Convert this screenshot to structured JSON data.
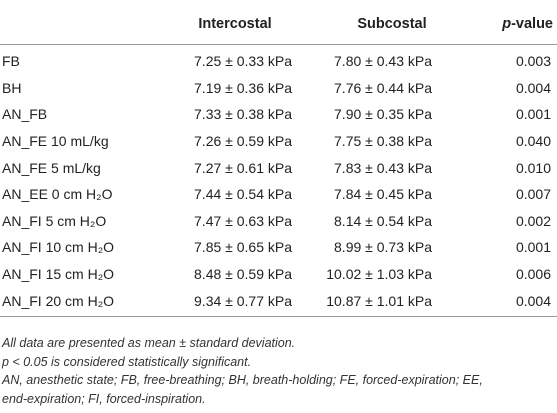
{
  "table": {
    "headers": {
      "label": "",
      "intercostal": "Intercostal",
      "subcostal": "Subcostal",
      "p_italic": "p",
      "p_rest": "-value"
    },
    "rows": [
      {
        "label": "FB",
        "intercostal": "7.25 ± 0.33 kPa",
        "subcostal": "7.80 ± 0.43 kPa",
        "p": "0.003"
      },
      {
        "label": "BH",
        "intercostal": "7.19 ± 0.36 kPa",
        "subcostal": "7.76 ± 0.44 kPa",
        "p": "0.004"
      },
      {
        "label": "AN_FB",
        "intercostal": "7.33 ± 0.38 kPa",
        "subcostal": "7.90 ± 0.35 kPa",
        "p": "0.001"
      },
      {
        "label": "AN_FE 10 mL/kg",
        "intercostal": "7.26 ± 0.59 kPa",
        "subcostal": "7.75 ± 0.38 kPa",
        "p": "0.040"
      },
      {
        "label": "AN_FE 5 mL/kg",
        "intercostal": "7.27 ± 0.61 kPa",
        "subcostal": "7.83 ± 0.43 kPa",
        "p": "0.010"
      },
      {
        "label": "AN_EE 0 cm H₂O",
        "intercostal": "7.44 ± 0.54 kPa",
        "subcostal": "7.84 ± 0.45 kPa",
        "p": "0.007"
      },
      {
        "label": "AN_FI 5 cm H₂O",
        "intercostal": "7.47 ± 0.63 kPa",
        "subcostal": "8.14 ± 0.54 kPa",
        "p": "0.002"
      },
      {
        "label": "AN_FI 10 cm H₂O",
        "intercostal": "7.85 ± 0.65 kPa",
        "subcostal": "8.99 ± 0.73 kPa",
        "p": "0.001"
      },
      {
        "label": "AN_FI 15 cm H₂O",
        "intercostal": "8.48 ± 0.59 kPa",
        "subcostal": "10.02 ± 1.03 kPa",
        "p": "0.006"
      },
      {
        "label": "AN_FI 20 cm H₂O",
        "intercostal": "9.34 ± 0.77 kPa",
        "subcostal": "10.87 ± 1.01 kPa",
        "p": "0.004"
      }
    ]
  },
  "notes": {
    "line1": "All data are presented as mean ± standard deviation.",
    "line2": "p < 0.05 is considered statistically significant.",
    "line3": "AN, anesthetic state; FB, free-breathing; BH, breath-holding; FE, forced-expiration; EE,",
    "line4": "end-expiration; FI, forced-inspiration."
  }
}
